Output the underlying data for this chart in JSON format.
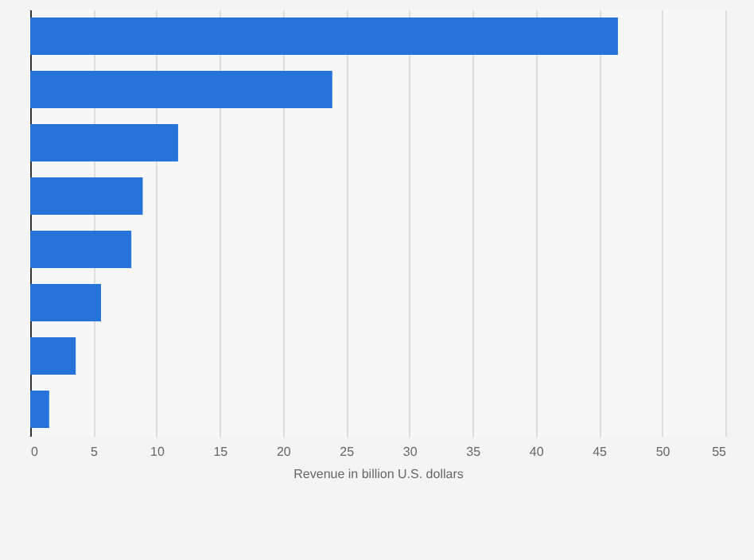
{
  "chart_data": {
    "type": "bar",
    "orientation": "horizontal",
    "xlabel": "Revenue in billion U.S. dollars",
    "categories": [
      null,
      null,
      null,
      null,
      null,
      null,
      null,
      null
    ],
    "values": [
      46.5,
      23.9,
      11.7,
      8.9,
      8.0,
      5.6,
      3.6,
      1.5
    ],
    "color": "#2674d9",
    "xlim": [
      0,
      55
    ],
    "xticks": [
      0,
      5,
      10,
      15,
      20,
      25,
      30,
      35,
      40,
      45,
      50,
      55
    ],
    "grid": "x"
  }
}
